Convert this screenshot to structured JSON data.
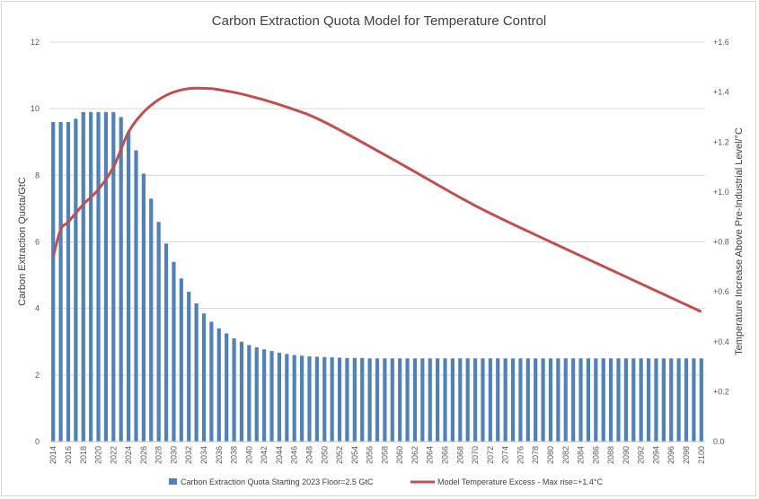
{
  "chart_data": {
    "type": "bar",
    "title": "Carbon Extraction Quota Model for Temperature Control",
    "xlabel": "",
    "ylabel": "Carbon Extraction Quota/GtC",
    "y2label": "Temperature Increase Above Pre-Industrial Level/°C",
    "ylim": [
      0,
      12
    ],
    "y2lim": [
      0,
      1.6
    ],
    "y_ticks": [
      "0",
      "2",
      "4",
      "6",
      "8",
      "10",
      "12"
    ],
    "y2_ticks": [
      "0.0",
      "+0.2",
      "+0.4",
      "+0.6",
      "+0.8",
      "+1.0",
      "+1.2",
      "+1.4",
      "+1.6"
    ],
    "grid": true,
    "legend_position": "bottom",
    "x_start": 2014,
    "x_end": 2100,
    "x_tick_step": 2,
    "series": [
      {
        "name": "Carbon Extraction Quota Starting 2023 Floor=2.5 GtC",
        "type": "bar",
        "axis": "left",
        "color": "#4f81bd",
        "values": [
          9.6,
          9.6,
          9.6,
          9.7,
          9.9,
          9.9,
          9.9,
          9.9,
          9.9,
          9.75,
          9.3,
          8.75,
          8.05,
          7.3,
          6.6,
          5.95,
          5.4,
          4.9,
          4.5,
          4.15,
          3.85,
          3.6,
          3.4,
          3.25,
          3.1,
          3.0,
          2.9,
          2.83,
          2.77,
          2.72,
          2.67,
          2.63,
          2.6,
          2.58,
          2.56,
          2.55,
          2.54,
          2.53,
          2.52,
          2.51,
          2.51,
          2.51,
          2.5,
          2.5,
          2.5,
          2.5,
          2.5,
          2.5,
          2.5,
          2.5,
          2.5,
          2.5,
          2.5,
          2.5,
          2.5,
          2.5,
          2.5,
          2.5,
          2.5,
          2.5,
          2.5,
          2.5,
          2.5,
          2.5,
          2.5,
          2.5,
          2.5,
          2.5,
          2.5,
          2.5,
          2.5,
          2.5,
          2.5,
          2.5,
          2.5,
          2.5,
          2.5,
          2.5,
          2.5,
          2.5,
          2.5,
          2.5,
          2.5,
          2.5,
          2.5,
          2.5,
          2.5
        ]
      },
      {
        "name": "Model Temperature Excess  - Max rise=+1.4°C",
        "type": "line",
        "axis": "right",
        "color": "#c0504d",
        "x": [
          2014,
          2015,
          2016,
          2018,
          2020,
          2022,
          2024,
          2026,
          2028,
          2030,
          2032,
          2034,
          2036,
          2040,
          2045,
          2050,
          2060,
          2070,
          2080,
          2090,
          2100
        ],
        "values": [
          0.74,
          0.85,
          0.88,
          0.95,
          1.01,
          1.1,
          1.24,
          1.32,
          1.37,
          1.4,
          1.414,
          1.415,
          1.41,
          1.385,
          1.34,
          1.28,
          1.115,
          0.945,
          0.8,
          0.66,
          0.52
        ]
      }
    ]
  }
}
